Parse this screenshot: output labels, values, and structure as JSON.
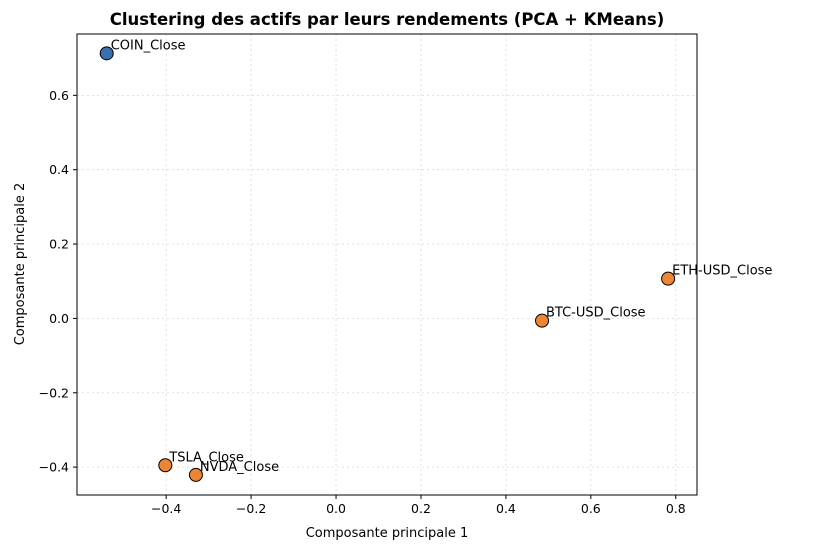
{
  "chart_data": {
    "type": "scatter",
    "title": "Clustering des actifs par leurs rendements (PCA + KMeans)",
    "xlabel": "Composante principale 1",
    "ylabel": "Composante principale 2",
    "xlim": [
      -0.61,
      0.85
    ],
    "ylim": [
      -0.475,
      0.765
    ],
    "xticks": [
      -0.4,
      -0.2,
      0.0,
      0.2,
      0.4,
      0.6,
      0.8
    ],
    "xtick_labels": [
      "−0.4",
      "−0.2",
      "0.0",
      "0.2",
      "0.4",
      "0.6",
      "0.8"
    ],
    "yticks": [
      -0.4,
      -0.2,
      0.0,
      0.2,
      0.4,
      0.6
    ],
    "ytick_labels": [
      "−0.4",
      "−0.2",
      "0.0",
      "0.2",
      "0.4",
      "0.6"
    ],
    "grid": true,
    "cluster_colors": [
      "#3b70b0",
      "#ee8532"
    ],
    "points": [
      {
        "label": "COIN_Close",
        "x": -0.54,
        "y": 0.713,
        "cluster": 0
      },
      {
        "label": "ETH-USD_Close",
        "x": 0.782,
        "y": 0.107,
        "cluster": 1
      },
      {
        "label": "BTC-USD_Close",
        "x": 0.485,
        "y": -0.006,
        "cluster": 1
      },
      {
        "label": "TSLA_Close",
        "x": -0.402,
        "y": -0.395,
        "cluster": 1
      },
      {
        "label": "NVDA_Close",
        "x": -0.33,
        "y": -0.421,
        "cluster": 1
      }
    ]
  }
}
